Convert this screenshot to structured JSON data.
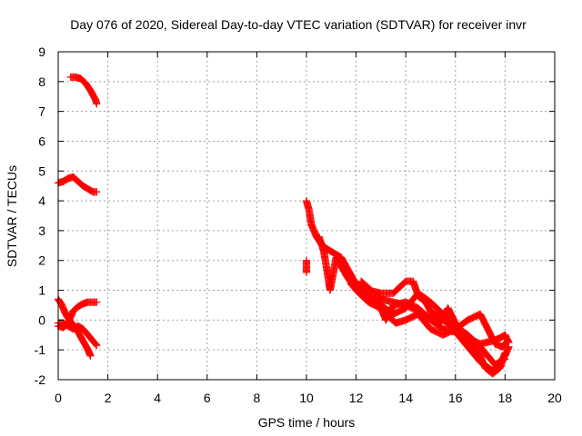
{
  "chart_data": {
    "type": "scatter",
    "title": "Day 076 of 2020, Sidereal Day-to-day VTEC variation (SDTVAR) for receiver invr",
    "xlabel": "GPS time / hours",
    "ylabel": "SDTVAR / TECUs",
    "xlim": [
      0,
      20
    ],
    "ylim": [
      -2,
      9
    ],
    "xticks": [
      0,
      2,
      4,
      6,
      8,
      10,
      12,
      14,
      16,
      18,
      20
    ],
    "yticks": [
      -2,
      -1,
      0,
      1,
      2,
      3,
      4,
      5,
      6,
      7,
      8,
      9
    ],
    "grid": true,
    "marker": "plus",
    "color": "#ff0000",
    "series": [
      {
        "name": "trace-1",
        "points": [
          [
            0.5,
            8.15
          ],
          [
            0.7,
            8.15
          ],
          [
            0.9,
            8.1
          ],
          [
            1.1,
            7.95
          ],
          [
            1.3,
            7.7
          ],
          [
            1.5,
            7.4
          ],
          [
            1.55,
            7.25
          ]
        ]
      },
      {
        "name": "trace-2",
        "points": [
          [
            0.0,
            4.6
          ],
          [
            0.2,
            4.65
          ],
          [
            0.4,
            4.75
          ],
          [
            0.6,
            4.8
          ],
          [
            0.8,
            4.65
          ],
          [
            1.0,
            4.5
          ],
          [
            1.2,
            4.4
          ],
          [
            1.4,
            4.3
          ],
          [
            1.55,
            4.3
          ]
        ]
      },
      {
        "name": "trace-3",
        "points": [
          [
            0.0,
            0.7
          ],
          [
            0.15,
            0.5
          ],
          [
            0.3,
            0.2
          ],
          [
            0.45,
            0.0
          ],
          [
            0.6,
            -0.15
          ],
          [
            0.8,
            -0.4
          ],
          [
            1.0,
            -0.7
          ],
          [
            1.2,
            -1.0
          ],
          [
            1.3,
            -1.2
          ]
        ]
      },
      {
        "name": "trace-4",
        "points": [
          [
            0.0,
            -0.2
          ],
          [
            0.2,
            -0.25
          ],
          [
            0.4,
            -0.1
          ],
          [
            0.6,
            0.3
          ],
          [
            0.8,
            0.45
          ],
          [
            1.0,
            0.55
          ],
          [
            1.2,
            0.6
          ],
          [
            1.4,
            0.6
          ],
          [
            1.55,
            0.6
          ]
        ]
      },
      {
        "name": "trace-5",
        "points": [
          [
            0.0,
            -0.1
          ],
          [
            0.2,
            -0.1
          ],
          [
            0.4,
            -0.2
          ],
          [
            0.6,
            -0.3
          ],
          [
            0.8,
            -0.2
          ],
          [
            1.0,
            -0.3
          ],
          [
            1.2,
            -0.5
          ],
          [
            1.4,
            -0.7
          ],
          [
            1.55,
            -0.85
          ]
        ]
      },
      {
        "name": "trace-6",
        "points": [
          [
            10.0,
            2.0
          ],
          [
            10.0,
            1.6
          ]
        ]
      },
      {
        "name": "trace-7",
        "points": [
          [
            10.0,
            4.0
          ],
          [
            10.1,
            3.7
          ],
          [
            10.2,
            3.2
          ],
          [
            10.4,
            2.8
          ],
          [
            10.6,
            2.55
          ],
          [
            10.8,
            2.4
          ],
          [
            11.0,
            2.3
          ],
          [
            11.2,
            2.2
          ],
          [
            11.4,
            2.1
          ],
          [
            11.6,
            1.8
          ],
          [
            11.8,
            1.5
          ],
          [
            12.0,
            1.2
          ],
          [
            12.5,
            1.0
          ],
          [
            13.0,
            0.9
          ],
          [
            13.5,
            0.9
          ],
          [
            14.0,
            1.3
          ],
          [
            14.3,
            1.3
          ],
          [
            14.5,
            0.8
          ],
          [
            14.8,
            0.6
          ],
          [
            15.0,
            0.3
          ],
          [
            15.5,
            0.0
          ],
          [
            16.0,
            -0.3
          ],
          [
            16.5,
            -0.6
          ],
          [
            17.0,
            -0.8
          ],
          [
            17.5,
            -0.7
          ],
          [
            17.8,
            -0.6
          ],
          [
            18.0,
            -0.5
          ],
          [
            18.15,
            -0.75
          ]
        ]
      },
      {
        "name": "trace-8",
        "points": [
          [
            10.5,
            2.8
          ],
          [
            10.7,
            2.3
          ],
          [
            10.9,
            1.3
          ],
          [
            10.95,
            1.0
          ],
          [
            11.2,
            2.1
          ],
          [
            11.6,
            1.5
          ],
          [
            12.0,
            1.0
          ],
          [
            12.5,
            0.6
          ],
          [
            13.0,
            0.4
          ],
          [
            13.2,
            0.0
          ],
          [
            13.5,
            0.5
          ],
          [
            14.0,
            0.6
          ],
          [
            14.5,
            0.4
          ],
          [
            15.0,
            0.0
          ],
          [
            15.5,
            -0.3
          ],
          [
            16.0,
            -0.4
          ],
          [
            16.5,
            -0.9
          ],
          [
            17.0,
            -1.4
          ],
          [
            17.5,
            -1.7
          ],
          [
            18.0,
            -1.2
          ],
          [
            18.15,
            -0.9
          ]
        ]
      },
      {
        "name": "trace-9",
        "points": [
          [
            11.5,
            1.8
          ],
          [
            12.0,
            1.2
          ],
          [
            12.5,
            0.8
          ],
          [
            13.0,
            0.5
          ],
          [
            13.5,
            0.2
          ],
          [
            14.0,
            0.4
          ],
          [
            14.5,
            0.9
          ],
          [
            15.0,
            0.6
          ],
          [
            15.5,
            0.2
          ],
          [
            16.0,
            -0.2
          ],
          [
            16.5,
            -0.5
          ],
          [
            17.0,
            -0.9
          ],
          [
            17.3,
            -1.2
          ],
          [
            17.6,
            -1.5
          ],
          [
            18.0,
            -1.3
          ]
        ]
      },
      {
        "name": "trace-10",
        "points": [
          [
            11.8,
            1.2
          ],
          [
            12.3,
            0.8
          ],
          [
            12.8,
            0.5
          ],
          [
            13.2,
            0.2
          ],
          [
            13.6,
            -0.1
          ],
          [
            14.0,
            0.0
          ],
          [
            14.5,
            0.2
          ],
          [
            15.0,
            -0.3
          ],
          [
            15.5,
            -0.5
          ],
          [
            16.0,
            -0.3
          ],
          [
            16.5,
            0.0
          ],
          [
            17.0,
            0.2
          ],
          [
            17.3,
            -0.3
          ],
          [
            17.6,
            -0.8
          ],
          [
            17.9,
            -0.9
          ],
          [
            18.1,
            -0.7
          ]
        ]
      },
      {
        "name": "trace-11",
        "points": [
          [
            12.2,
            1.3
          ],
          [
            12.6,
            1.0
          ],
          [
            13.0,
            0.7
          ],
          [
            13.5,
            0.6
          ],
          [
            14.0,
            0.5
          ],
          [
            14.5,
            0.3
          ],
          [
            15.0,
            0.1
          ],
          [
            15.4,
            -0.1
          ],
          [
            15.7,
            0.4
          ],
          [
            16.0,
            -0.1
          ],
          [
            16.5,
            -0.7
          ],
          [
            17.0,
            -1.2
          ],
          [
            17.2,
            -1.6
          ],
          [
            17.5,
            -1.8
          ],
          [
            17.8,
            -1.6
          ],
          [
            18.0,
            -1.1
          ]
        ]
      }
    ]
  }
}
